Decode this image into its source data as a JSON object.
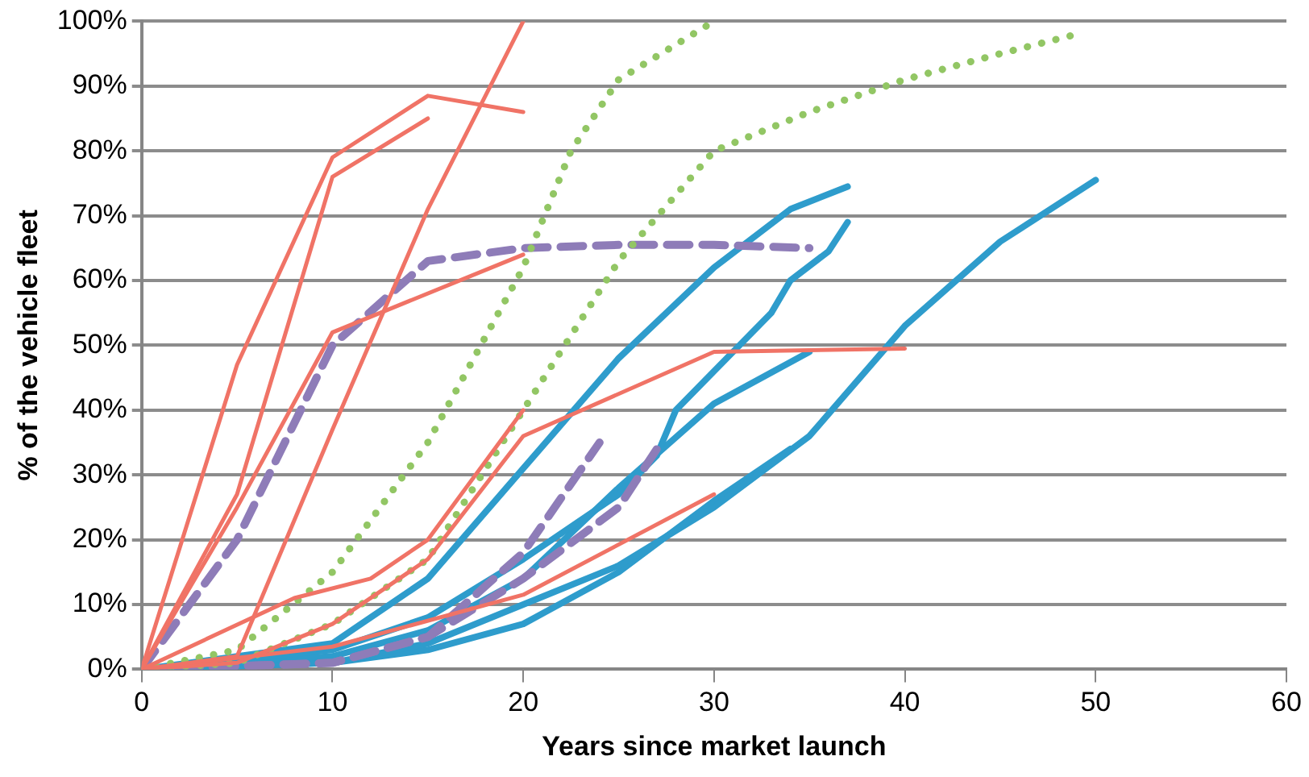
{
  "chart_data": {
    "type": "line",
    "xlabel": "Years since market launch",
    "ylabel": "% of the vehicle fleet",
    "xlim": [
      0,
      60
    ],
    "xticks": [
      0,
      10,
      20,
      30,
      40,
      50,
      60
    ],
    "ylim": [
      0,
      100
    ],
    "yticks": [
      {
        "value": 0,
        "label": "0%"
      },
      {
        "value": 10,
        "label": "10%"
      },
      {
        "value": 20,
        "label": "20%"
      },
      {
        "value": 30,
        "label": "30%"
      },
      {
        "value": 40,
        "label": "40%"
      },
      {
        "value": 50,
        "label": "50%"
      },
      {
        "value": 60,
        "label": "60%"
      },
      {
        "value": 70,
        "label": "70%"
      },
      {
        "value": 80,
        "label": "80%"
      },
      {
        "value": 90,
        "label": "90%"
      },
      {
        "value": 100,
        "label": "100%"
      }
    ],
    "grid": "y",
    "legend": false,
    "marker": "none",
    "series": [
      {
        "color": "#f07366",
        "line_style": "solid",
        "x": [
          0,
          5,
          10,
          15,
          20
        ],
        "values": [
          0,
          47,
          79,
          88.5,
          86
        ]
      },
      {
        "color": "#f07366",
        "line_style": "solid",
        "x": [
          0,
          5,
          10,
          15
        ],
        "values": [
          0,
          27,
          76,
          85
        ]
      },
      {
        "color": "#f07366",
        "line_style": "solid",
        "x": [
          0,
          5,
          10,
          20
        ],
        "values": [
          0,
          25,
          52,
          64
        ]
      },
      {
        "color": "#f07366",
        "line_style": "solid",
        "x": [
          0,
          5,
          10,
          15,
          20
        ],
        "values": [
          0,
          2,
          37,
          71,
          100
        ]
      },
      {
        "color": "#f07366",
        "line_style": "solid",
        "x": [
          0,
          8,
          12,
          15,
          20
        ],
        "values": [
          0,
          11,
          14,
          20,
          40
        ]
      },
      {
        "color": "#f07366",
        "line_style": "solid",
        "x": [
          0,
          5,
          10,
          15,
          20,
          30,
          40
        ],
        "values": [
          0,
          1,
          7,
          17,
          36,
          49,
          49.5
        ]
      },
      {
        "color": "#f07366",
        "line_style": "solid",
        "x": [
          0,
          10,
          20,
          30
        ],
        "values": [
          0,
          3.5,
          11.5,
          27
        ]
      },
      {
        "color": "#92c664",
        "line_style": "dotted",
        "x": [
          0,
          5,
          10,
          15,
          20,
          22.5,
          25,
          30
        ],
        "values": [
          0,
          3,
          15,
          35,
          62,
          80,
          91,
          100
        ]
      },
      {
        "color": "#92c664",
        "line_style": "dotted",
        "x": [
          0,
          5,
          10,
          15,
          20,
          25,
          30,
          35,
          40,
          45,
          49
        ],
        "values": [
          0,
          1,
          7,
          17,
          40,
          63,
          80,
          86,
          91,
          95,
          98
        ]
      },
      {
        "color": "#8e7cb8",
        "line_style": "dashed",
        "x": [
          0,
          5,
          10,
          15,
          20,
          25,
          30,
          35
        ],
        "values": [
          0,
          20,
          50,
          63,
          65,
          65.5,
          65.5,
          65
        ]
      },
      {
        "color": "#8e7cb8",
        "line_style": "dashed",
        "x": [
          0,
          10,
          15,
          20,
          24
        ],
        "values": [
          0,
          1,
          5,
          18,
          35
        ]
      },
      {
        "color": "#8e7cb8",
        "line_style": "dashed",
        "x": [
          0,
          10,
          15,
          20,
          25,
          27
        ],
        "values": [
          0,
          1,
          5,
          14,
          25,
          34
        ]
      },
      {
        "color": "#2e9ccc",
        "line_style": "solid",
        "x": [
          0,
          10,
          15,
          20,
          25,
          30,
          34,
          37
        ],
        "values": [
          0,
          4,
          14,
          31,
          48,
          62,
          71,
          74.5
        ]
      },
      {
        "color": "#2e9ccc",
        "line_style": "solid",
        "x": [
          0,
          10,
          15,
          20,
          25,
          27,
          28,
          30,
          33,
          34,
          36,
          37
        ],
        "values": [
          0,
          3,
          8,
          17,
          27,
          33,
          40,
          46,
          55,
          60,
          64.5,
          69
        ]
      },
      {
        "color": "#2e9ccc",
        "line_style": "solid",
        "x": [
          0,
          10,
          15,
          20,
          25,
          30,
          35
        ],
        "values": [
          0,
          2,
          6,
          14,
          28,
          41,
          49
        ]
      },
      {
        "color": "#2e9ccc",
        "line_style": "solid",
        "x": [
          0,
          10,
          15,
          20,
          25,
          30,
          35,
          40,
          45,
          50
        ],
        "values": [
          0,
          1,
          4,
          10,
          16,
          25,
          36,
          53,
          66,
          75.5
        ]
      },
      {
        "color": "#2e9ccc",
        "line_style": "solid",
        "x": [
          0,
          10,
          15,
          20,
          25,
          30,
          34
        ],
        "values": [
          0,
          1,
          3,
          7,
          15,
          26,
          34
        ]
      }
    ]
  }
}
